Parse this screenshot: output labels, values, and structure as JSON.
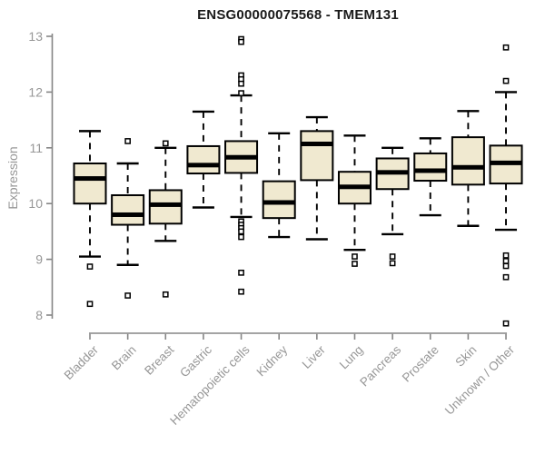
{
  "chart_data": {
    "type": "boxplot",
    "title": "ENSG00000075568 - TMEM131",
    "ylabel": "Expression",
    "xlabel": "",
    "ylim": [
      7.6,
      13
    ],
    "yticks": [
      8,
      9,
      10,
      11,
      12,
      13
    ],
    "grid": false,
    "legend": "none",
    "colors": {
      "box_fill": "#F0E9D0",
      "box_stroke": "#000000",
      "median": "#000000",
      "axis": "#858585",
      "labels": "#979797",
      "title": "#1a1a1a"
    },
    "categories": [
      "Bladder",
      "Brain",
      "Breast",
      "Gastric",
      "Hematopoietic cells",
      "Kidney",
      "Liver",
      "Lung",
      "Pancreas",
      "Prostate",
      "Skin",
      "Unknown / Other"
    ],
    "boxes": [
      {
        "category": "Bladder",
        "whisker_low": 9.05,
        "q1": 10.0,
        "median": 10.45,
        "q3": 10.72,
        "whisker_high": 11.3,
        "outliers": [
          8.87,
          8.2
        ]
      },
      {
        "category": "Brain",
        "whisker_low": 8.9,
        "q1": 9.62,
        "median": 9.8,
        "q3": 10.15,
        "whisker_high": 10.72,
        "outliers": [
          11.12,
          8.35
        ]
      },
      {
        "category": "Breast",
        "whisker_low": 9.33,
        "q1": 9.64,
        "median": 9.98,
        "q3": 10.24,
        "whisker_high": 11.0,
        "outliers": [
          11.08,
          8.37
        ]
      },
      {
        "category": "Gastric",
        "whisker_low": 9.93,
        "q1": 10.54,
        "median": 10.69,
        "q3": 11.03,
        "whisker_high": 11.65,
        "outliers": []
      },
      {
        "category": "Hematopoietic cells",
        "whisker_low": 9.76,
        "q1": 10.55,
        "median": 10.83,
        "q3": 11.12,
        "whisker_high": 11.94,
        "outliers": [
          12.95,
          12.9,
          12.3,
          12.23,
          12.15,
          11.98,
          9.68,
          9.62,
          9.56,
          9.5,
          9.4,
          8.76,
          8.42
        ]
      },
      {
        "category": "Kidney",
        "whisker_low": 9.4,
        "q1": 9.74,
        "median": 10.02,
        "q3": 10.4,
        "whisker_high": 11.26,
        "outliers": []
      },
      {
        "category": "Liver",
        "whisker_low": 9.36,
        "q1": 10.42,
        "median": 11.07,
        "q3": 11.3,
        "whisker_high": 11.55,
        "outliers": []
      },
      {
        "category": "Lung",
        "whisker_low": 9.17,
        "q1": 10.0,
        "median": 10.3,
        "q3": 10.57,
        "whisker_high": 11.22,
        "outliers": [
          9.05,
          8.92
        ]
      },
      {
        "category": "Pancreas",
        "whisker_low": 9.45,
        "q1": 10.26,
        "median": 10.56,
        "q3": 10.81,
        "whisker_high": 11.0,
        "outliers": [
          9.05,
          8.93
        ]
      },
      {
        "category": "Prostate",
        "whisker_low": 9.79,
        "q1": 10.41,
        "median": 10.59,
        "q3": 10.9,
        "whisker_high": 11.17,
        "outliers": []
      },
      {
        "category": "Skin",
        "whisker_low": 9.6,
        "q1": 10.34,
        "median": 10.65,
        "q3": 11.19,
        "whisker_high": 11.66,
        "outliers": []
      },
      {
        "category": "Unknown / Other",
        "whisker_low": 9.53,
        "q1": 10.36,
        "median": 10.73,
        "q3": 11.04,
        "whisker_high": 12.0,
        "outliers": [
          12.8,
          12.2,
          9.07,
          8.97,
          8.88,
          8.68,
          7.85
        ]
      }
    ]
  }
}
